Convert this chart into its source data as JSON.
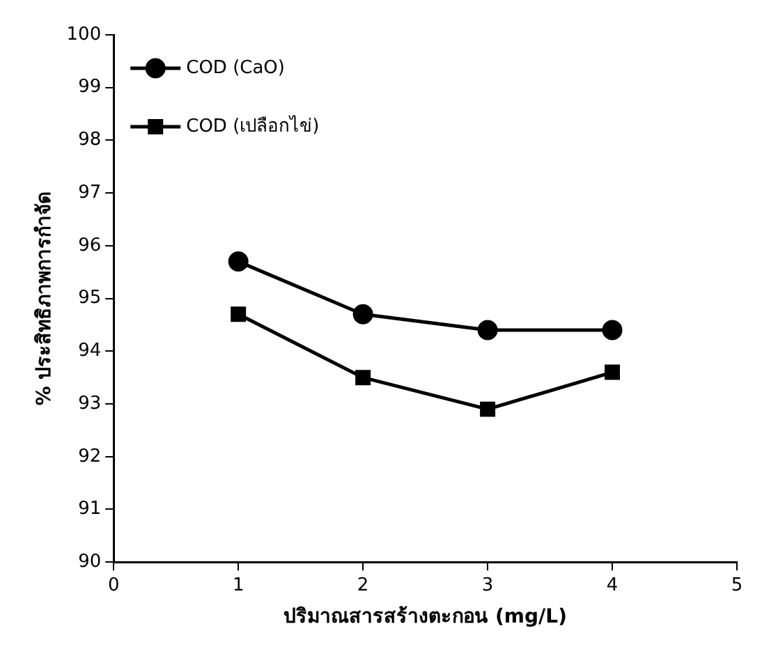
{
  "chart_data": {
    "type": "line",
    "xlabel": "ปริมาณสารสร้างตะกอน (mg/L)",
    "ylabel": "% ประสิทธิภาพการกำจัด",
    "x": [
      1,
      2,
      3,
      4
    ],
    "series": [
      {
        "name": "COD (CaO)",
        "color": "#000000",
        "marker": "circle",
        "values": [
          95.7,
          94.7,
          94.4,
          94.4
        ]
      },
      {
        "name": "COD (เปลือกไข่)",
        "color": "#000000",
        "marker": "square",
        "values": [
          94.7,
          93.5,
          92.9,
          93.6
        ]
      }
    ],
    "xlim": [
      0,
      5
    ],
    "xticks": [
      0,
      1,
      2,
      3,
      4,
      5
    ],
    "ylim": [
      90,
      100
    ],
    "yticks": [
      90,
      91,
      92,
      93,
      94,
      95,
      96,
      97,
      98,
      99,
      100
    ],
    "grid": false,
    "legend": "top left",
    "line_style": "solid"
  }
}
